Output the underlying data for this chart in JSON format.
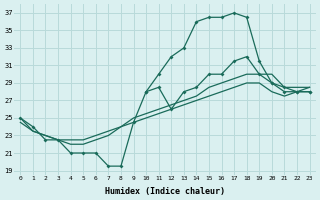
{
  "xlabel": "Humidex (Indice chaleur)",
  "bg_color": "#daf0f0",
  "grid_color": "#b8dada",
  "line_color": "#1a6b5a",
  "xlim": [
    -0.5,
    23.5
  ],
  "ylim": [
    18.5,
    38.0
  ],
  "xticks": [
    0,
    1,
    2,
    3,
    4,
    5,
    6,
    7,
    8,
    9,
    10,
    11,
    12,
    13,
    14,
    15,
    16,
    17,
    18,
    19,
    20,
    21,
    22,
    23
  ],
  "yticks": [
    19,
    21,
    23,
    25,
    27,
    29,
    31,
    33,
    35,
    37
  ],
  "curve_peak_x": [
    10,
    11,
    12,
    13,
    14,
    15,
    16,
    17,
    18,
    19,
    20,
    21,
    22,
    23
  ],
  "curve_peak_y": [
    28,
    30,
    32,
    33,
    36,
    36.5,
    36.5,
    37,
    36.5,
    31.5,
    29,
    28,
    28,
    28
  ],
  "curve_mid_x": [
    0,
    1,
    2,
    3,
    4,
    5,
    6,
    7,
    8,
    9,
    10,
    11,
    12,
    13,
    14,
    15,
    16,
    17,
    18,
    19,
    20,
    21,
    22,
    23
  ],
  "curve_mid_y": [
    25,
    24,
    22.5,
    22.5,
    21,
    21,
    21,
    19.5,
    19.5,
    24.5,
    28,
    28.5,
    26,
    28,
    28.5,
    30,
    30,
    31.5,
    32,
    30,
    29,
    28.5,
    28,
    28
  ],
  "curve_upper_x": [
    0,
    1,
    2,
    3,
    4,
    5,
    6,
    7,
    8,
    9,
    10,
    11,
    12,
    13,
    14,
    15,
    16,
    17,
    18,
    19,
    20,
    21,
    22,
    23
  ],
  "curve_upper_y": [
    25,
    23.5,
    23,
    22.5,
    22,
    22,
    22.5,
    23,
    24,
    25,
    25.5,
    26,
    26.5,
    27,
    27.5,
    28.5,
    29,
    29.5,
    30,
    30,
    30,
    28.5,
    28.5,
    28.5
  ],
  "curve_lower_x": [
    0,
    1,
    2,
    3,
    4,
    5,
    6,
    7,
    8,
    9,
    10,
    11,
    12,
    13,
    14,
    15,
    16,
    17,
    18,
    19,
    20,
    21,
    22,
    23
  ],
  "curve_lower_y": [
    24.5,
    23.5,
    23,
    22.5,
    22.5,
    22.5,
    23,
    23.5,
    24,
    24.5,
    25,
    25.5,
    26,
    26.5,
    27,
    27.5,
    28,
    28.5,
    29,
    29,
    28,
    27.5,
    28,
    28.5
  ]
}
